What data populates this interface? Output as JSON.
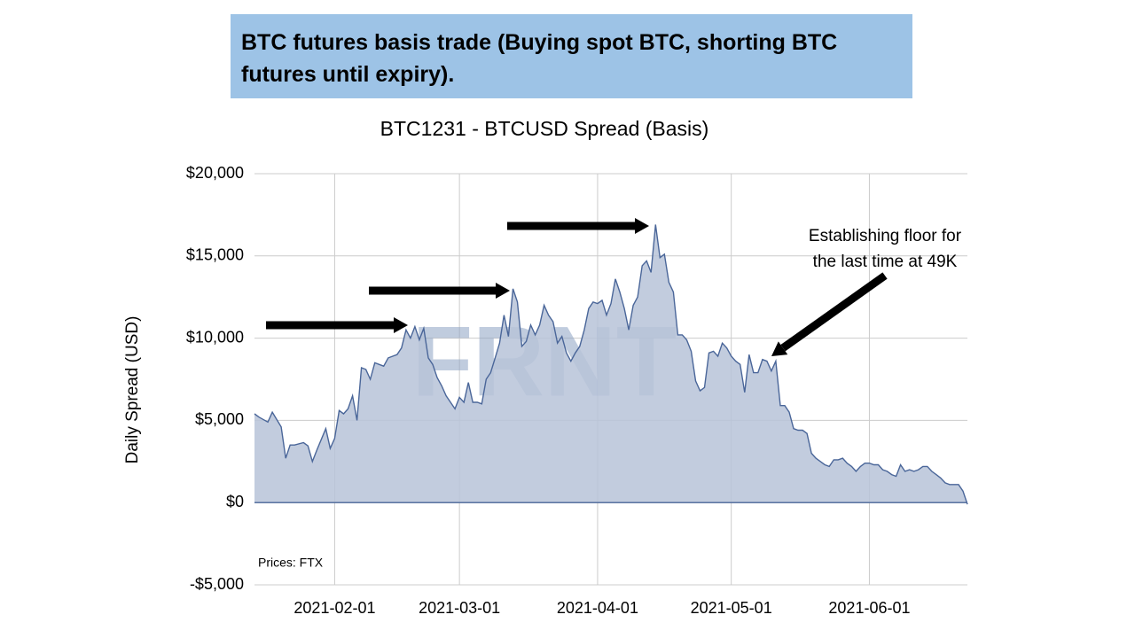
{
  "header": {
    "title": "BTC futures basis trade (Buying spot BTC, shorting BTC futures until expiry)."
  },
  "chart_data": {
    "type": "area",
    "title": "BTC1231 - BTCUSD Spread (Basis)",
    "y_label": "Daily Spread (USD)",
    "source": "Prices: FTX",
    "watermark": "FRNT",
    "annotation": [
      "Establishing floor for",
      "the last time at 49K"
    ],
    "line_color": "#4a6699",
    "fill_color": "#b7c3d8",
    "grid": true,
    "xlim": [
      "2021-01-14",
      "2021-06-23"
    ],
    "xticks": [
      "2021-02-01",
      "2021-03-01",
      "2021-04-01",
      "2021-05-01",
      "2021-06-01"
    ],
    "ylim": [
      -5000,
      20000
    ],
    "yticks": [
      {
        "value": -5000,
        "label": "-$5,000"
      },
      {
        "value": 0,
        "label": "$0"
      },
      {
        "value": 5000,
        "label": "$5,000"
      },
      {
        "value": 10000,
        "label": "$10,000"
      },
      {
        "value": 15000,
        "label": "$15,000"
      },
      {
        "value": 20000,
        "label": "$20,000"
      }
    ],
    "x": [
      "2021-01-14",
      "2021-01-15",
      "2021-01-17",
      "2021-01-18",
      "2021-01-20",
      "2021-01-21",
      "2021-01-22",
      "2021-01-23",
      "2021-01-25",
      "2021-01-26",
      "2021-01-27",
      "2021-01-28",
      "2021-01-30",
      "2021-01-31",
      "2021-02-01",
      "2021-02-02",
      "2021-02-03",
      "2021-02-04",
      "2021-02-05",
      "2021-02-06",
      "2021-02-07",
      "2021-02-08",
      "2021-02-09",
      "2021-02-10",
      "2021-02-11",
      "2021-02-12",
      "2021-02-13",
      "2021-02-15",
      "2021-02-16",
      "2021-02-17",
      "2021-02-18",
      "2021-02-19",
      "2021-02-20",
      "2021-02-21",
      "2021-02-22",
      "2021-02-23",
      "2021-02-24",
      "2021-02-25",
      "2021-02-26",
      "2021-02-27",
      "2021-02-28",
      "2021-03-01",
      "2021-03-02",
      "2021-03-03",
      "2021-03-04",
      "2021-03-05",
      "2021-03-06",
      "2021-03-07",
      "2021-03-08",
      "2021-03-09",
      "2021-03-10",
      "2021-03-11",
      "2021-03-12",
      "2021-03-13",
      "2021-03-14",
      "2021-03-15",
      "2021-03-16",
      "2021-03-17",
      "2021-03-18",
      "2021-03-19",
      "2021-03-20",
      "2021-03-21",
      "2021-03-22",
      "2021-03-23",
      "2021-03-24",
      "2021-03-25",
      "2021-03-26",
      "2021-03-27",
      "2021-03-28",
      "2021-03-29",
      "2021-03-30",
      "2021-03-31",
      "2021-04-01",
      "2021-04-02",
      "2021-04-03",
      "2021-04-04",
      "2021-04-05",
      "2021-04-06",
      "2021-04-07",
      "2021-04-08",
      "2021-04-09",
      "2021-04-10",
      "2021-04-11",
      "2021-04-12",
      "2021-04-13",
      "2021-04-14",
      "2021-04-15",
      "2021-04-16",
      "2021-04-17",
      "2021-04-18",
      "2021-04-19",
      "2021-04-20",
      "2021-04-21",
      "2021-04-22",
      "2021-04-23",
      "2021-04-24",
      "2021-04-25",
      "2021-04-26",
      "2021-04-27",
      "2021-04-28",
      "2021-04-29",
      "2021-04-30",
      "2021-05-01",
      "2021-05-02",
      "2021-05-03",
      "2021-05-04",
      "2021-05-05",
      "2021-05-06",
      "2021-05-07",
      "2021-05-08",
      "2021-05-09",
      "2021-05-10",
      "2021-05-11",
      "2021-05-12",
      "2021-05-13",
      "2021-05-14",
      "2021-05-15",
      "2021-05-16",
      "2021-05-17",
      "2021-05-18",
      "2021-05-19",
      "2021-05-20",
      "2021-05-21",
      "2021-05-22",
      "2021-05-23",
      "2021-05-24",
      "2021-05-25",
      "2021-05-26",
      "2021-05-27",
      "2021-05-28",
      "2021-05-29",
      "2021-05-30",
      "2021-05-31",
      "2021-06-01",
      "2021-06-02",
      "2021-06-03",
      "2021-06-04",
      "2021-06-05",
      "2021-06-06",
      "2021-06-07",
      "2021-06-08",
      "2021-06-09",
      "2021-06-10",
      "2021-06-11",
      "2021-06-12",
      "2021-06-13",
      "2021-06-14",
      "2021-06-15",
      "2021-06-16",
      "2021-06-17",
      "2021-06-18",
      "2021-06-19",
      "2021-06-20",
      "2021-06-21",
      "2021-06-22",
      "2021-06-23"
    ],
    "values": [
      5400,
      5200,
      4900,
      5500,
      4600,
      2700,
      3500,
      3500,
      3650,
      3450,
      2500,
      3200,
      4500,
      3300,
      3900,
      5600,
      5400,
      5700,
      6500,
      5000,
      8200,
      8100,
      7500,
      8500,
      8400,
      8300,
      8800,
      9000,
      9400,
      10500,
      10000,
      10700,
      9900,
      10600,
      8800,
      8400,
      7600,
      7100,
      6500,
      6100,
      5700,
      6400,
      6100,
      7300,
      6100,
      6100,
      6000,
      7500,
      7900,
      8800,
      9700,
      11400,
      10100,
      13000,
      12200,
      9500,
      9800,
      10800,
      10200,
      10800,
      12000,
      11400,
      11000,
      9700,
      10100,
      9100,
      8600,
      9100,
      9500,
      10500,
      11800,
      12200,
      12100,
      12300,
      11400,
      12100,
      13600,
      12800,
      11800,
      10500,
      12000,
      12500,
      14400,
      14700,
      14000,
      16900,
      14900,
      15100,
      13400,
      12800,
      10200,
      10200,
      9900,
      9200,
      7400,
      6800,
      7000,
      9100,
      9200,
      8900,
      9700,
      9400,
      8900,
      8600,
      8400,
      6700,
      9000,
      7900,
      7900,
      8700,
      8600,
      8000,
      8600,
      5900,
      5900,
      5500,
      4500,
      4400,
      4400,
      4200,
      3000,
      2700,
      2500,
      2300,
      2200,
      2600,
      2600,
      2700,
      2400,
      2200,
      1900,
      2200,
      2400,
      2400,
      2300,
      2300,
      2000,
      1900,
      1700,
      1600,
      2300,
      1900,
      2000,
      1900,
      2000,
      2200,
      2200,
      1900,
      1700,
      1500,
      1200,
      1100,
      1100,
      1100,
      700,
      -100
    ]
  }
}
